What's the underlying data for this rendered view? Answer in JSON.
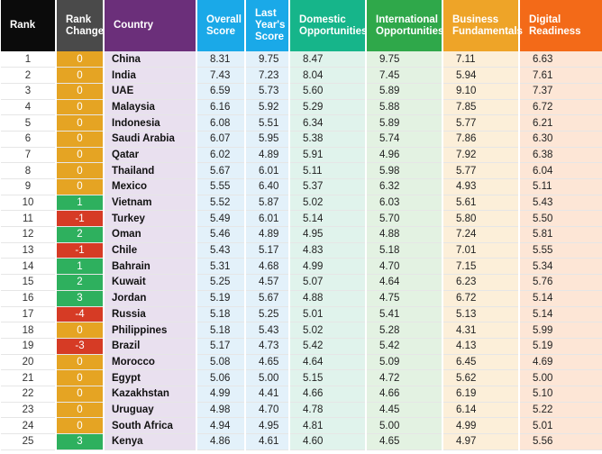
{
  "chart_data": {
    "type": "table",
    "headers": [
      {
        "label": "Rank",
        "color": "#0b0b0b"
      },
      {
        "label": "Rank Change",
        "color": "#4a4a4a"
      },
      {
        "label": "Country",
        "color": "#6b2f7a"
      },
      {
        "label": "Overall Score",
        "color": "#1aa9e8"
      },
      {
        "label": "Last Year's Score",
        "color": "#1aa9e8"
      },
      {
        "label": "Domestic Opportunities",
        "color": "#16b58a"
      },
      {
        "label": "International Opportunities",
        "color": "#2fa84a"
      },
      {
        "label": "Business Fundamentals",
        "color": "#eea428"
      },
      {
        "label": "Digital Readiness",
        "color": "#f36a18"
      }
    ],
    "column_tints": [
      "#ffffff",
      "#ffffff",
      "#e9e0ef",
      "#e3f1fa",
      "#e3f1fa",
      "#e0f3ec",
      "#e3f2e2",
      "#fcefd9",
      "#fde6d6"
    ],
    "change_colors": {
      "zero": "#e5a423",
      "up": "#2eb05e",
      "down": "#d63b25"
    },
    "rows": [
      {
        "rank": "1",
        "change": "0",
        "country": "China",
        "overall": "8.31",
        "last": "9.75",
        "domestic": "8.47",
        "international": "9.75",
        "business": "7.11",
        "digital": "6.63"
      },
      {
        "rank": "2",
        "change": "0",
        "country": "India",
        "overall": "7.43",
        "last": "7.23",
        "domestic": "8.04",
        "international": "7.45",
        "business": "5.94",
        "digital": "7.61"
      },
      {
        "rank": "3",
        "change": "0",
        "country": "UAE",
        "overall": "6.59",
        "last": "5.73",
        "domestic": "5.60",
        "international": "5.89",
        "business": "9.10",
        "digital": "7.37"
      },
      {
        "rank": "4",
        "change": "0",
        "country": "Malaysia",
        "overall": "6.16",
        "last": "5.92",
        "domestic": "5.29",
        "international": "5.88",
        "business": "7.85",
        "digital": "6.72"
      },
      {
        "rank": "5",
        "change": "0",
        "country": "Indonesia",
        "overall": "6.08",
        "last": "5.51",
        "domestic": "6.34",
        "international": "5.89",
        "business": "5.77",
        "digital": "6.21"
      },
      {
        "rank": "6",
        "change": "0",
        "country": "Saudi Arabia",
        "overall": "6.07",
        "last": "5.95",
        "domestic": "5.38",
        "international": "5.74",
        "business": "7.86",
        "digital": "6.30"
      },
      {
        "rank": "7",
        "change": "0",
        "country": "Qatar",
        "overall": "6.02",
        "last": "4.89",
        "domestic": "5.91",
        "international": "4.96",
        "business": "7.92",
        "digital": "6.38"
      },
      {
        "rank": "8",
        "change": "0",
        "country": "Thailand",
        "overall": "5.67",
        "last": "6.01",
        "domestic": "5.11",
        "international": "5.98",
        "business": "5.77",
        "digital": "6.04"
      },
      {
        "rank": "9",
        "change": "0",
        "country": "Mexico",
        "overall": "5.55",
        "last": "6.40",
        "domestic": "5.37",
        "international": "6.32",
        "business": "4.93",
        "digital": "5.11"
      },
      {
        "rank": "10",
        "change": "1",
        "country": "Vietnam",
        "overall": "5.52",
        "last": "5.87",
        "domestic": "5.02",
        "international": "6.03",
        "business": "5.61",
        "digital": "5.43"
      },
      {
        "rank": "11",
        "change": "-1",
        "country": "Turkey",
        "overall": "5.49",
        "last": "6.01",
        "domestic": "5.14",
        "international": "5.70",
        "business": "5.80",
        "digital": "5.50"
      },
      {
        "rank": "12",
        "change": "2",
        "country": "Oman",
        "overall": "5.46",
        "last": "4.89",
        "domestic": "4.95",
        "international": "4.88",
        "business": "7.24",
        "digital": "5.81"
      },
      {
        "rank": "13",
        "change": "-1",
        "country": "Chile",
        "overall": "5.43",
        "last": "5.17",
        "domestic": "4.83",
        "international": "5.18",
        "business": "7.01",
        "digital": "5.55"
      },
      {
        "rank": "14",
        "change": "1",
        "country": "Bahrain",
        "overall": "5.31",
        "last": "4.68",
        "domestic": "4.99",
        "international": "4.70",
        "business": "7.15",
        "digital": "5.34"
      },
      {
        "rank": "15",
        "change": "2",
        "country": "Kuwait",
        "overall": "5.25",
        "last": "4.57",
        "domestic": "5.07",
        "international": "4.64",
        "business": "6.23",
        "digital": "5.76"
      },
      {
        "rank": "16",
        "change": "3",
        "country": "Jordan",
        "overall": "5.19",
        "last": "5.67",
        "domestic": "4.88",
        "international": "4.75",
        "business": "6.72",
        "digital": "5.14"
      },
      {
        "rank": "17",
        "change": "-4",
        "country": "Russia",
        "overall": "5.18",
        "last": "5.25",
        "domestic": "5.01",
        "international": "5.41",
        "business": "5.13",
        "digital": "5.14"
      },
      {
        "rank": "18",
        "change": "0",
        "country": "Philippines",
        "overall": "5.18",
        "last": "5.43",
        "domestic": "5.02",
        "international": "5.28",
        "business": "4.31",
        "digital": "5.99"
      },
      {
        "rank": "19",
        "change": "-3",
        "country": "Brazil",
        "overall": "5.17",
        "last": "4.73",
        "domestic": "5.42",
        "international": "5.42",
        "business": "4.13",
        "digital": "5.19"
      },
      {
        "rank": "20",
        "change": "0",
        "country": "Morocco",
        "overall": "5.08",
        "last": "4.65",
        "domestic": "4.64",
        "international": "5.09",
        "business": "6.45",
        "digital": "4.69"
      },
      {
        "rank": "21",
        "change": "0",
        "country": "Egypt",
        "overall": "5.06",
        "last": "5.00",
        "domestic": "5.15",
        "international": "4.72",
        "business": "5.62",
        "digital": "5.00"
      },
      {
        "rank": "22",
        "change": "0",
        "country": "Kazakhstan",
        "overall": "4.99",
        "last": "4.41",
        "domestic": "4.66",
        "international": "4.66",
        "business": "6.19",
        "digital": "5.10"
      },
      {
        "rank": "23",
        "change": "0",
        "country": "Uruguay",
        "overall": "4.98",
        "last": "4.70",
        "domestic": "4.78",
        "international": "4.45",
        "business": "6.14",
        "digital": "5.22"
      },
      {
        "rank": "24",
        "change": "0",
        "country": "South Africa",
        "overall": "4.94",
        "last": "4.95",
        "domestic": "4.81",
        "international": "5.00",
        "business": "4.99",
        "digital": "5.01"
      },
      {
        "rank": "25",
        "change": "3",
        "country": "Kenya",
        "overall": "4.86",
        "last": "4.61",
        "domestic": "4.60",
        "international": "4.65",
        "business": "4.97",
        "digital": "5.56"
      }
    ]
  }
}
